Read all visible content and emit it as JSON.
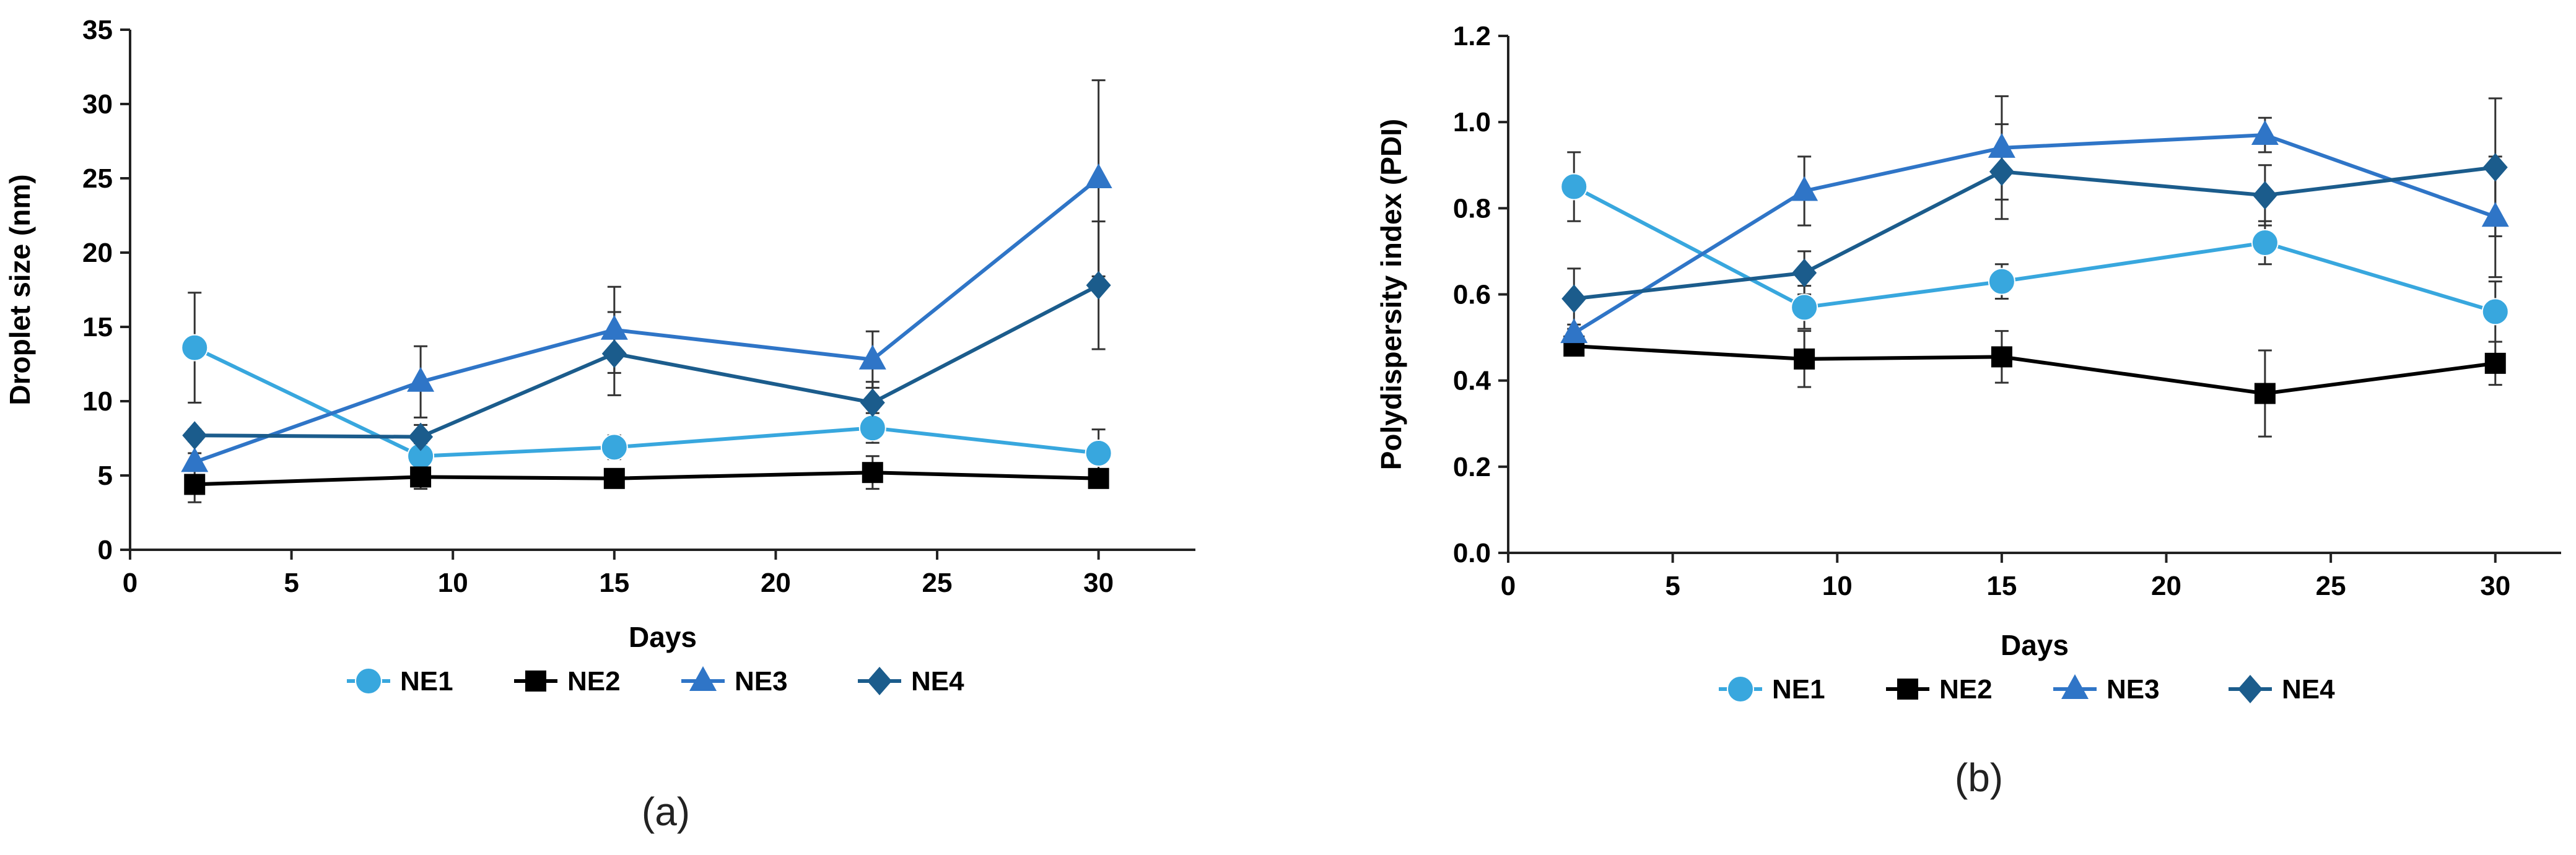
{
  "chart_data": [
    {
      "type": "line",
      "caption": "(a)",
      "xlabel": "Days",
      "ylabel": "Droplet size (nm)",
      "xlim": [
        0,
        33
      ],
      "xticks": [
        0,
        5,
        10,
        15,
        20,
        25,
        30
      ],
      "ylim": [
        0,
        35
      ],
      "yticks": [
        0,
        5,
        10,
        15,
        20,
        25,
        30,
        35
      ],
      "decimals": 0,
      "x": [
        2,
        9,
        15,
        23,
        30
      ],
      "series": [
        {
          "name": "NE1",
          "marker": "circle",
          "color": "#38A7DE",
          "values": [
            13.6,
            6.3,
            6.9,
            8.2,
            6.5
          ],
          "errors": [
            3.7,
            0.8,
            0.8,
            1.0,
            1.6
          ]
        },
        {
          "name": "NE2",
          "marker": "square",
          "color": "#000000",
          "values": [
            4.4,
            4.9,
            4.8,
            5.2,
            4.8
          ],
          "errors": [
            1.2,
            0.8,
            0.5,
            1.1,
            0.4
          ]
        },
        {
          "name": "NE3",
          "marker": "triangle",
          "color": "#2F75C7",
          "values": [
            5.9,
            11.3,
            14.8,
            12.8,
            25.0
          ],
          "errors": [
            0.6,
            2.4,
            2.9,
            1.9,
            6.6
          ]
        },
        {
          "name": "NE4",
          "marker": "diamond",
          "color": "#1B5C8C",
          "values": [
            7.7,
            7.6,
            13.2,
            9.9,
            17.8
          ],
          "errors": [
            0.4,
            0.8,
            2.8,
            1.4,
            4.3
          ]
        }
      ]
    },
    {
      "type": "line",
      "caption": "(b)",
      "xlabel": "Days",
      "ylabel": "Polydispersity index (PDI)",
      "xlim": [
        0,
        32
      ],
      "xticks": [
        0,
        5,
        10,
        15,
        20,
        25,
        30
      ],
      "ylim": [
        0,
        1.2
      ],
      "yticks": [
        0,
        0.2,
        0.4,
        0.6,
        0.8,
        1.0,
        1.2
      ],
      "decimals": 1,
      "x": [
        2,
        9,
        15,
        23,
        30
      ],
      "series": [
        {
          "name": "NE1",
          "marker": "circle",
          "color": "#38A7DE",
          "values": [
            0.85,
            0.57,
            0.63,
            0.72,
            0.56
          ],
          "errors": [
            0.08,
            0.05,
            0.04,
            0.05,
            0.07
          ]
        },
        {
          "name": "NE2",
          "marker": "square",
          "color": "#000000",
          "values": [
            0.48,
            0.45,
            0.455,
            0.37,
            0.44
          ],
          "errors": [
            0.02,
            0.065,
            0.06,
            0.1,
            0.05
          ]
        },
        {
          "name": "NE3",
          "marker": "triangle",
          "color": "#2F75C7",
          "values": [
            0.51,
            0.84,
            0.94,
            0.97,
            0.78
          ],
          "errors": [
            0.02,
            0.08,
            0.12,
            0.04,
            0.14
          ]
        },
        {
          "name": "NE4",
          "marker": "diamond",
          "color": "#1B5C8C",
          "values": [
            0.59,
            0.65,
            0.885,
            0.83,
            0.895
          ],
          "errors": [
            0.07,
            0.05,
            0.11,
            0.07,
            0.16
          ]
        }
      ]
    }
  ]
}
